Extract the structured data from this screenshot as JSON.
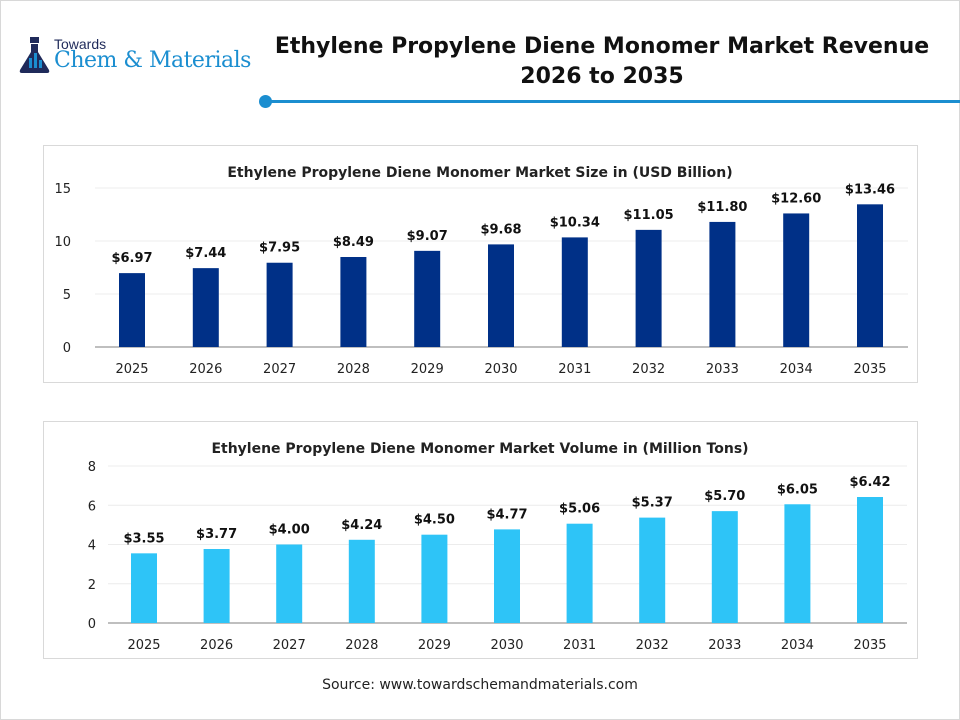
{
  "brand": {
    "line1": "Towards",
    "line2": "Chem & Materials"
  },
  "header": {
    "title_line1": "Ethylene Propylene Diene Monomer Market Revenue",
    "title_line2": "2026 to 2035"
  },
  "source": "Source: www.towardschemandmaterials.com",
  "chart_data": [
    {
      "type": "bar",
      "title": "Ethylene Propylene Diene Monomer Market Size in (USD Billion)",
      "categories": [
        "2025",
        "2026",
        "2027",
        "2028",
        "2029",
        "2030",
        "2031",
        "2032",
        "2033",
        "2034",
        "2035"
      ],
      "values": [
        6.97,
        7.44,
        7.95,
        8.49,
        9.07,
        9.68,
        10.34,
        11.05,
        11.8,
        12.6,
        13.46
      ],
      "data_labels": [
        "$6.97",
        "$7.44",
        "$7.95",
        "$8.49",
        "$9.07",
        "$9.68",
        "$10.34",
        "$11.05",
        "$11.80",
        "$12.60",
        "$13.46"
      ],
      "yticks": [
        0,
        5,
        10,
        15
      ],
      "ylim": [
        0,
        15
      ],
      "grid": true,
      "color": "#003087"
    },
    {
      "type": "bar",
      "title": "Ethylene Propylene Diene Monomer Market Volume in (Million Tons)",
      "categories": [
        "2025",
        "2026",
        "2027",
        "2028",
        "2029",
        "2030",
        "2031",
        "2032",
        "2033",
        "2034",
        "2035"
      ],
      "values": [
        3.55,
        3.77,
        4.0,
        4.24,
        4.5,
        4.77,
        5.06,
        5.37,
        5.7,
        6.05,
        6.42
      ],
      "data_labels": [
        "$3.55",
        "$3.77",
        "$4.00",
        "$4.24",
        "$4.50",
        "$4.77",
        "$5.06",
        "$5.37",
        "$5.70",
        "$6.05",
        "$6.42"
      ],
      "yticks": [
        0,
        2,
        4,
        6,
        8
      ],
      "ylim": [
        0,
        8
      ],
      "grid": true,
      "color": "#2ec4f7"
    }
  ]
}
